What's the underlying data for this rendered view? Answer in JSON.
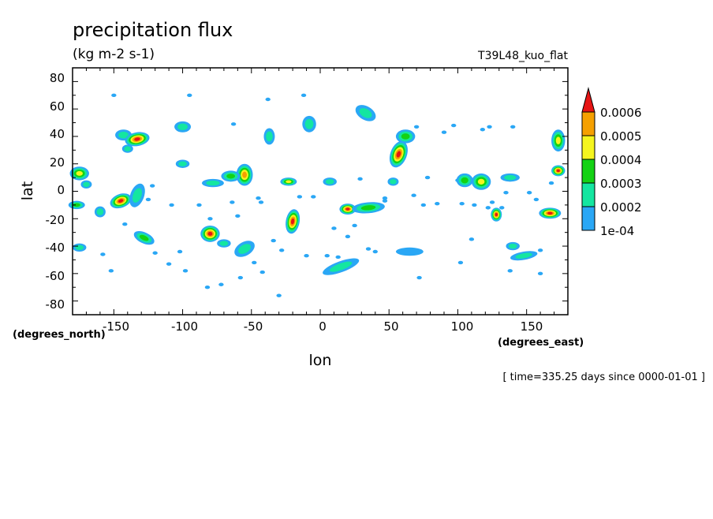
{
  "title": "precipitation flux",
  "units": "(kg m-2 s-1)",
  "run_label": "T39L48_kuo_flat",
  "time_label": "[ time=335.25 days since 0000-01-01 ]",
  "chart_data": {
    "type": "contour",
    "variable": "precipitation flux",
    "units": "kg m-2 s-1",
    "xlabel": "lon",
    "ylabel": "lat",
    "x_units": "(degrees_east)",
    "y_units": "(degrees_north)",
    "xlim": [
      -180,
      180
    ],
    "ylim": [
      -90,
      90
    ],
    "x_ticks": [
      -150,
      -100,
      -50,
      0,
      50,
      100,
      150
    ],
    "y_ticks": [
      80,
      60,
      40,
      20,
      0,
      -20,
      -40,
      -60,
      -80
    ],
    "x_tick_labels": [
      "-150",
      "-100",
      "-50",
      "0",
      "50",
      "100",
      "150"
    ],
    "y_tick_labels": [
      "80",
      "60",
      "40",
      "20",
      "0",
      "-20",
      "-40",
      "-60",
      "-80"
    ],
    "legend": {
      "placement": "right",
      "levels": [
        0.0001,
        0.0002,
        0.0003,
        0.0004,
        0.0005,
        0.0006
      ],
      "labels": [
        "1e-04",
        "0.0002",
        "0.0003",
        "0.0004",
        "0.0005",
        "0.0006"
      ],
      "colors": [
        "#2aa7f5",
        "#14e6a0",
        "#14d214",
        "#f5f51e",
        "#f5a000",
        "#e61414"
      ]
    },
    "colors": {
      "c1": "#2aa7f5",
      "c2": "#14e6a0",
      "c3": "#14d214",
      "c4": "#f5f51e",
      "c5": "#f5a000",
      "c6": "#e61414"
    },
    "cells": [
      {
        "lon": -175,
        "lat": 13,
        "rx": 7,
        "ry": 5,
        "level": 4,
        "rot": 0
      },
      {
        "lon": -177,
        "lat": -10,
        "rx": 6,
        "ry": 3,
        "level": 3,
        "rot": 0
      },
      {
        "lon": -175,
        "lat": -41,
        "rx": 5,
        "ry": 3,
        "level": 2,
        "rot": 0
      },
      {
        "lon": -170,
        "lat": 5,
        "rx": 4,
        "ry": 3,
        "level": 2,
        "rot": 0
      },
      {
        "lon": -160,
        "lat": -15,
        "rx": 4,
        "ry": 4,
        "level": 2,
        "rot": 0
      },
      {
        "lon": -143,
        "lat": 41,
        "rx": 6,
        "ry": 4,
        "level": 2,
        "rot": 0
      },
      {
        "lon": -133,
        "lat": 38,
        "rx": 9,
        "ry": 5,
        "level": 6,
        "rot": -10
      },
      {
        "lon": -140,
        "lat": 31,
        "rx": 4,
        "ry": 3,
        "level": 2,
        "rot": 0
      },
      {
        "lon": -145,
        "lat": -7,
        "rx": 8,
        "ry": 5,
        "level": 6,
        "rot": -20
      },
      {
        "lon": -133,
        "lat": -3,
        "rx": 5,
        "ry": 9,
        "level": 2,
        "rot": 20
      },
      {
        "lon": -128,
        "lat": -34,
        "rx": 8,
        "ry": 4,
        "level": 3,
        "rot": 25
      },
      {
        "lon": -100,
        "lat": 47,
        "rx": 6,
        "ry": 4,
        "level": 2,
        "rot": 0
      },
      {
        "lon": -100,
        "lat": 20,
        "rx": 5,
        "ry": 3,
        "level": 2,
        "rot": 0
      },
      {
        "lon": -80,
        "lat": -31,
        "rx": 7,
        "ry": 6,
        "level": 6,
        "rot": 0
      },
      {
        "lon": -70,
        "lat": -38,
        "rx": 5,
        "ry": 3,
        "level": 2,
        "rot": 0
      },
      {
        "lon": -55,
        "lat": 12,
        "rx": 6,
        "ry": 8,
        "level": 5,
        "rot": 0
      },
      {
        "lon": -65,
        "lat": 11,
        "rx": 7,
        "ry": 4,
        "level": 3,
        "rot": 0
      },
      {
        "lon": -78,
        "lat": 6,
        "rx": 8,
        "ry": 3,
        "level": 2,
        "rot": 0
      },
      {
        "lon": -55,
        "lat": -42,
        "rx": 8,
        "ry": 5,
        "level": 2,
        "rot": -30
      },
      {
        "lon": -37,
        "lat": 40,
        "rx": 4,
        "ry": 6,
        "level": 2,
        "rot": 0
      },
      {
        "lon": -20,
        "lat": -22,
        "rx": 5,
        "ry": 9,
        "level": 6,
        "rot": 10
      },
      {
        "lon": -23,
        "lat": 7,
        "rx": 6,
        "ry": 3,
        "level": 4,
        "rot": 0
      },
      {
        "lon": 7,
        "lat": 7,
        "rx": 5,
        "ry": 3,
        "level": 2,
        "rot": 0
      },
      {
        "lon": -8,
        "lat": 49,
        "rx": 5,
        "ry": 6,
        "level": 2,
        "rot": 0
      },
      {
        "lon": 15,
        "lat": -55,
        "rx": 14,
        "ry": 4,
        "level": 2,
        "rot": -20
      },
      {
        "lon": 20,
        "lat": -13,
        "rx": 6,
        "ry": 4,
        "level": 6,
        "rot": 0
      },
      {
        "lon": 35,
        "lat": -12,
        "rx": 12,
        "ry": 4,
        "level": 3,
        "rot": -5
      },
      {
        "lon": 33,
        "lat": 57,
        "rx": 8,
        "ry": 5,
        "level": 2,
        "rot": 30
      },
      {
        "lon": 57,
        "lat": 27,
        "rx": 6,
        "ry": 10,
        "level": 6,
        "rot": 20
      },
      {
        "lon": 62,
        "lat": 40,
        "rx": 7,
        "ry": 5,
        "level": 3,
        "rot": 0
      },
      {
        "lon": 53,
        "lat": 7,
        "rx": 4,
        "ry": 3,
        "level": 2,
        "rot": 0
      },
      {
        "lon": 65,
        "lat": -44,
        "rx": 10,
        "ry": 3,
        "level": 1,
        "rot": 0
      },
      {
        "lon": 105,
        "lat": 8,
        "rx": 6,
        "ry": 5,
        "level": 3,
        "rot": 0
      },
      {
        "lon": 117,
        "lat": 7,
        "rx": 7,
        "ry": 6,
        "level": 4,
        "rot": 0
      },
      {
        "lon": 128,
        "lat": -17,
        "rx": 4,
        "ry": 5,
        "level": 6,
        "rot": 0
      },
      {
        "lon": 138,
        "lat": 10,
        "rx": 7,
        "ry": 3,
        "level": 2,
        "rot": 0
      },
      {
        "lon": 140,
        "lat": -40,
        "rx": 5,
        "ry": 3,
        "level": 2,
        "rot": 0
      },
      {
        "lon": 148,
        "lat": -47,
        "rx": 10,
        "ry": 3,
        "level": 2,
        "rot": -10
      },
      {
        "lon": 167,
        "lat": -16,
        "rx": 8,
        "ry": 4,
        "level": 6,
        "rot": 0
      },
      {
        "lon": 173,
        "lat": 15,
        "rx": 5,
        "ry": 4,
        "level": 6,
        "rot": 0
      },
      {
        "lon": 173,
        "lat": 37,
        "rx": 5,
        "ry": 8,
        "level": 4,
        "rot": 0
      }
    ],
    "specks": [
      [
        -158,
        -46
      ],
      [
        -152,
        -58
      ],
      [
        -150,
        70
      ],
      [
        -142,
        -24
      ],
      [
        -125,
        -6
      ],
      [
        -122,
        4
      ],
      [
        -120,
        -45
      ],
      [
        -110,
        -53
      ],
      [
        -108,
        -10
      ],
      [
        -102,
        -44
      ],
      [
        -98,
        -58
      ],
      [
        -95,
        70
      ],
      [
        -88,
        -10
      ],
      [
        -80,
        -20
      ],
      [
        -82,
        -70
      ],
      [
        -72,
        -68
      ],
      [
        -64,
        -8
      ],
      [
        -63,
        49
      ],
      [
        -60,
        -18
      ],
      [
        -58,
        -63
      ],
      [
        -48,
        -52
      ],
      [
        -45,
        -5
      ],
      [
        -43,
        -8
      ],
      [
        -42,
        -59
      ],
      [
        -38,
        67
      ],
      [
        -34,
        -36
      ],
      [
        -28,
        -43
      ],
      [
        -30,
        -76
      ],
      [
        -15,
        -4
      ],
      [
        -12,
        70
      ],
      [
        -10,
        -47
      ],
      [
        -5,
        -4
      ],
      [
        5,
        -47
      ],
      [
        10,
        -27
      ],
      [
        13,
        -48
      ],
      [
        20,
        -33
      ],
      [
        25,
        -25
      ],
      [
        29,
        9
      ],
      [
        35,
        -42
      ],
      [
        40,
        -44
      ],
      [
        47,
        -7
      ],
      [
        47,
        -5
      ],
      [
        68,
        -3
      ],
      [
        70,
        47
      ],
      [
        72,
        -63
      ],
      [
        75,
        -10
      ],
      [
        78,
        10
      ],
      [
        85,
        -9
      ],
      [
        90,
        43
      ],
      [
        97,
        48
      ],
      [
        100,
        8
      ],
      [
        103,
        -9
      ],
      [
        102,
        -52
      ],
      [
        110,
        -35
      ],
      [
        112,
        -10
      ],
      [
        118,
        45
      ],
      [
        122,
        -12
      ],
      [
        123,
        47
      ],
      [
        125,
        -8
      ],
      [
        132,
        -12
      ],
      [
        135,
        -1
      ],
      [
        138,
        -58
      ],
      [
        140,
        47
      ],
      [
        148,
        -46
      ],
      [
        152,
        -1
      ],
      [
        157,
        -6
      ],
      [
        160,
        -43
      ],
      [
        160,
        -60
      ],
      [
        167,
        -17
      ],
      [
        168,
        6
      ]
    ]
  }
}
